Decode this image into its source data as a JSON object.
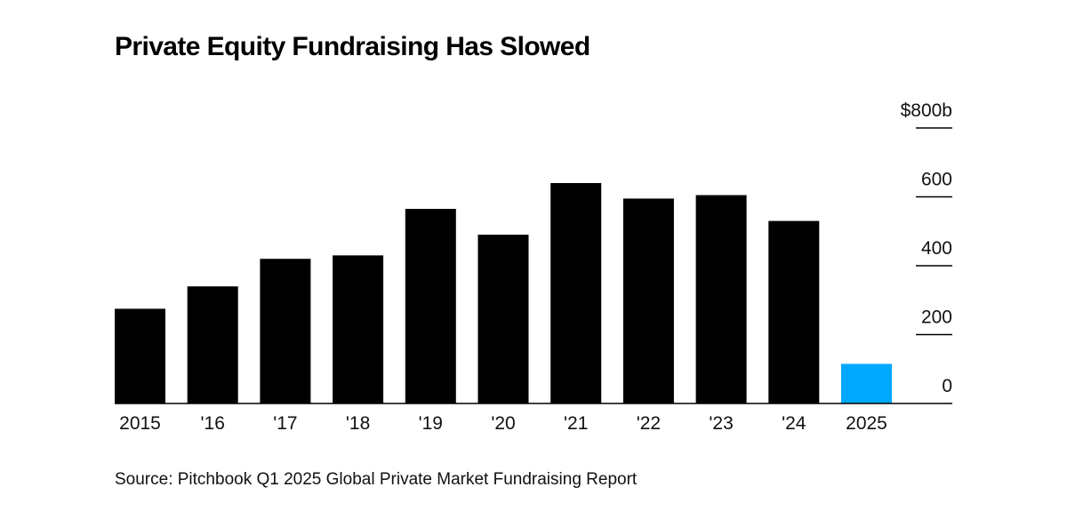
{
  "header": {
    "title": "Private Equity Fundraising Has Slowed"
  },
  "footer": {
    "source": "Source: Pitchbook Q1 2025 Global Private Market Fundraising Report"
  },
  "chart_data": {
    "type": "bar",
    "title": "Private Equity Fundraising Has Slowed",
    "categories": [
      "2015",
      "'16",
      "'17",
      "'18",
      "'19",
      "'20",
      "'21",
      "'22",
      "'23",
      "'24",
      "2025"
    ],
    "values": [
      275,
      340,
      420,
      430,
      565,
      490,
      640,
      595,
      605,
      530,
      115
    ],
    "colors": [
      "#000000",
      "#000000",
      "#000000",
      "#000000",
      "#000000",
      "#000000",
      "#000000",
      "#000000",
      "#000000",
      "#000000",
      "#00a8ff"
    ],
    "ylim": [
      0,
      800
    ],
    "yticks": [
      0,
      200,
      400,
      600,
      800
    ],
    "ytick_labels": [
      "0",
      "200",
      "400",
      "600",
      "$800b"
    ],
    "yaxis_position": "right",
    "xlabel": "",
    "ylabel": "",
    "grid": false
  }
}
